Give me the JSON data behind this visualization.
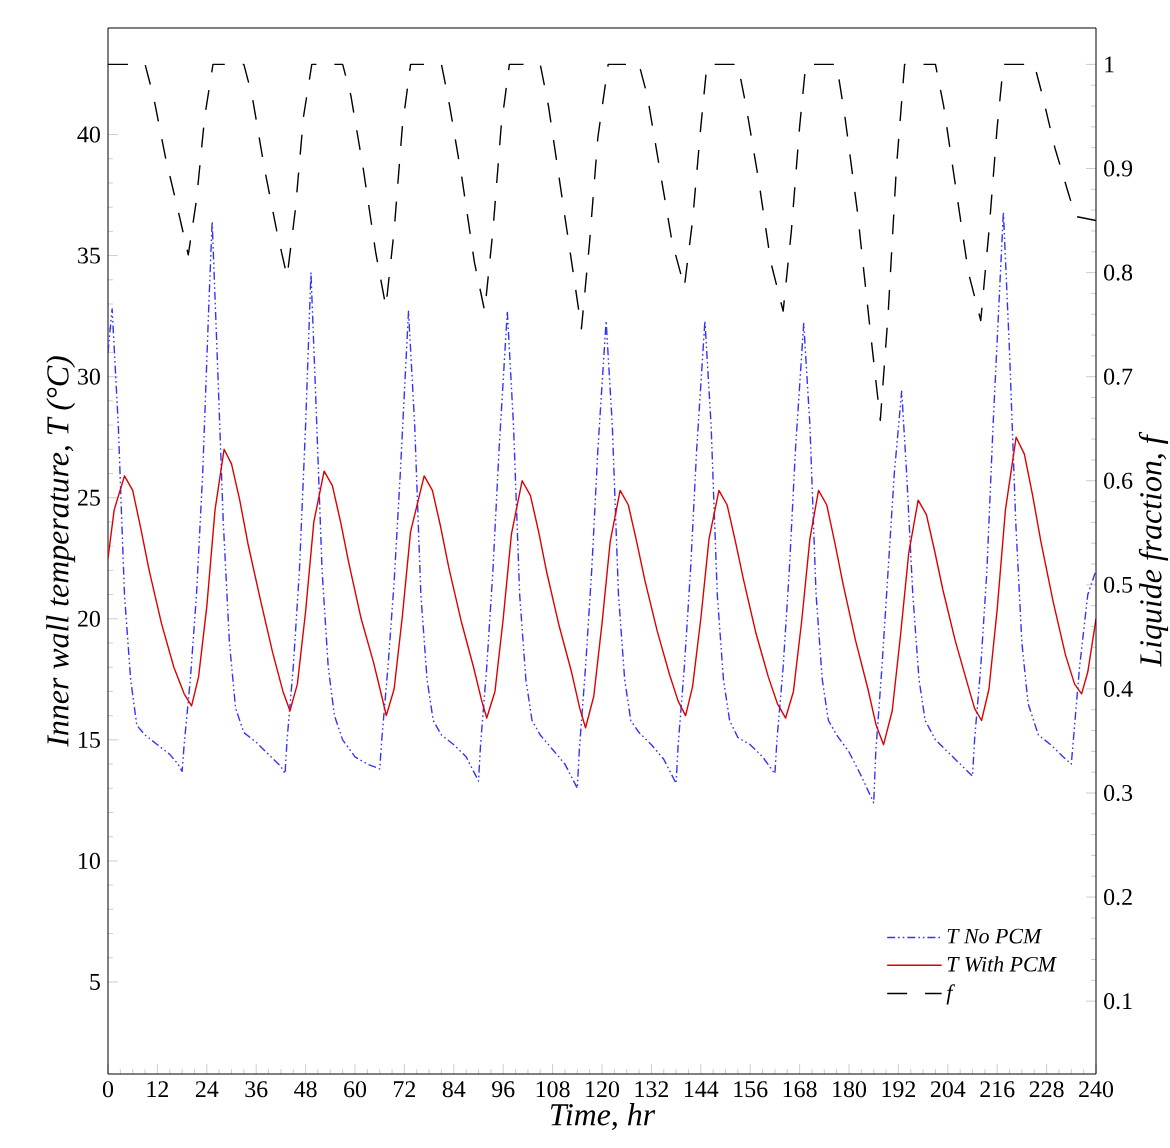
{
  "chart_data": {
    "type": "line",
    "xlabel": "Time, hr",
    "ylabel": "Inner wall temperature, T (°C)",
    "y2label": "Liquide fraction, f",
    "xlim": [
      0,
      240
    ],
    "xticks": [
      0,
      12,
      24,
      36,
      48,
      60,
      72,
      84,
      96,
      108,
      120,
      132,
      144,
      156,
      168,
      180,
      192,
      204,
      216,
      228,
      240
    ],
    "ylim": [
      1.2,
      44.4
    ],
    "yticks": [
      5,
      10,
      15,
      20,
      25,
      30,
      35,
      40
    ],
    "y2lim": [
      0.03,
      1.035
    ],
    "y2ticks": [
      0.1,
      0.2,
      0.3,
      0.4,
      0.5,
      0.6,
      0.7,
      0.8,
      0.9,
      1
    ],
    "legend": "bottom right",
    "series": [
      {
        "name": "T No PCM",
        "color": "#3333ff",
        "line_style": "dashdotdot",
        "x": [
          0,
          1,
          2.5,
          4,
          5.5,
          7,
          9,
          12,
          15,
          17,
          18,
          18.5,
          20,
          21.5,
          23,
          24.5,
          25.3,
          26.5,
          28,
          29.5,
          31,
          33,
          36,
          39,
          42,
          43,
          43.5,
          45,
          46.5,
          48,
          49.3,
          50.5,
          52,
          53.5,
          55,
          57,
          60,
          63,
          66,
          66.5,
          68,
          69.5,
          71,
          73,
          74.5,
          76,
          77.5,
          79,
          81,
          84,
          87,
          90,
          90.5,
          92,
          93.5,
          95,
          97,
          98.5,
          100,
          101.5,
          103,
          105,
          108,
          111,
          114,
          114.5,
          116,
          117.5,
          119,
          121,
          122.5,
          124,
          125.5,
          127,
          129,
          132,
          135,
          138,
          138.5,
          140,
          141.5,
          143,
          145,
          146.5,
          148,
          149.5,
          151,
          153,
          156,
          159,
          162,
          162.5,
          164,
          165.5,
          167,
          169,
          170.5,
          172,
          173.5,
          175,
          177,
          180,
          183,
          186,
          186.5,
          188,
          189.5,
          191,
          192.8,
          194,
          195.5,
          197,
          198.5,
          201,
          204,
          207,
          210,
          210.5,
          212,
          213.5,
          215,
          217.5,
          219,
          220.5,
          222,
          223.5,
          226,
          229,
          232,
          234,
          234.5,
          236,
          238,
          240
        ],
        "values": [
          31,
          32.8,
          28,
          21,
          17.5,
          15.6,
          15.2,
          14.8,
          14.4,
          14,
          13.7,
          14.8,
          17.5,
          21,
          26,
          33,
          36.4,
          31,
          24,
          19,
          16.3,
          15.3,
          14.9,
          14.4,
          13.9,
          13.6,
          15,
          18,
          22,
          28,
          34.3,
          29,
          22,
          18,
          16,
          15,
          14.3,
          14,
          13.8,
          15,
          18,
          21.5,
          26,
          32.7,
          28,
          21,
          17.5,
          15.8,
          15.2,
          14.8,
          14.3,
          13.3,
          14.8,
          18,
          22,
          27,
          32.7,
          28,
          21,
          17.5,
          15.8,
          15.2,
          14.6,
          14,
          13,
          14.6,
          18,
          22,
          27,
          32.3,
          28,
          21,
          17.5,
          15.8,
          15.3,
          14.8,
          14.2,
          13.2,
          14.8,
          18,
          22,
          27,
          32.3,
          28,
          21,
          17.5,
          15.8,
          15.1,
          14.8,
          14.3,
          13.6,
          15,
          18,
          22,
          27,
          32.2,
          28,
          21,
          17.5,
          15.8,
          15.2,
          14.5,
          13.5,
          12.4,
          14.5,
          18,
          22,
          26,
          29.4,
          26,
          21,
          17.5,
          15.8,
          15,
          14.5,
          14,
          13.5,
          15,
          18,
          22,
          28,
          36.8,
          31,
          24,
          19,
          16.5,
          15.2,
          14.8,
          14.3,
          14,
          15,
          18,
          21,
          22
        ]
      },
      {
        "name": "T With PCM",
        "color": "#dd0000",
        "line_style": "solid",
        "x": [
          0,
          1.5,
          4,
          6,
          8,
          10,
          13,
          16,
          18.5,
          20.3,
          22,
          24,
          26,
          28.2,
          30,
          32,
          34,
          37,
          40,
          42.5,
          44.2,
          46,
          48,
          50,
          52.5,
          54.5,
          56.5,
          58.5,
          61.5,
          64.5,
          66.5,
          67.6,
          69.5,
          71.5,
          73.5,
          76.8,
          78.8,
          80.8,
          82.8,
          85.8,
          88.8,
          90.8,
          92,
          94,
          96,
          98,
          100.6,
          102.6,
          104.6,
          106.6,
          109.6,
          112.6,
          114.6,
          116,
          118,
          120,
          122,
          124.4,
          126.4,
          128.4,
          130.4,
          133.4,
          136.4,
          138.5,
          140.3,
          142,
          144,
          146,
          148.4,
          150.4,
          152.4,
          154.4,
          157.4,
          160.4,
          162.6,
          164.6,
          166.5,
          168.5,
          170.5,
          172.6,
          174.6,
          176.6,
          178.6,
          181.6,
          184.6,
          186.6,
          188.4,
          190.5,
          192.5,
          194.5,
          196.8,
          198.8,
          200.8,
          202.8,
          205.8,
          208.8,
          210.5,
          212.2,
          214,
          216,
          218,
          220.6,
          222.6,
          224.6,
          226.6,
          229.6,
          232.6,
          234.8,
          236.5,
          238,
          240
        ],
        "values": [
          22.5,
          24.5,
          25.9,
          25.3,
          23.7,
          22,
          19.8,
          18,
          16.9,
          16.4,
          17.6,
          20.5,
          24.5,
          27,
          26.4,
          24.9,
          23.1,
          20.8,
          18.6,
          17,
          16.2,
          17.3,
          20.3,
          24,
          26.1,
          25.5,
          24,
          22.3,
          20,
          18.2,
          16.8,
          16,
          17.1,
          20.1,
          23.6,
          25.9,
          25.3,
          23.8,
          22.1,
          19.9,
          18,
          16.6,
          15.9,
          17,
          20,
          23.5,
          25.7,
          25.1,
          23.6,
          21.9,
          19.7,
          17.8,
          16.3,
          15.5,
          16.8,
          19.8,
          23.2,
          25.3,
          24.7,
          23.2,
          21.6,
          19.5,
          17.7,
          16.6,
          16,
          17.2,
          20,
          23.3,
          25.3,
          24.7,
          23.2,
          21.6,
          19.4,
          17.6,
          16.5,
          15.9,
          17,
          19.9,
          23.3,
          25.3,
          24.7,
          23.1,
          21.4,
          19.1,
          17.1,
          15.6,
          14.8,
          16.2,
          19.3,
          22.7,
          24.9,
          24.3,
          22.8,
          21.2,
          19.1,
          17.3,
          16.3,
          15.8,
          17.1,
          20.4,
          24.5,
          27.5,
          26.8,
          25.1,
          23.2,
          20.7,
          18.5,
          17.3,
          16.9,
          17.8,
          20
        ]
      },
      {
        "name": "f",
        "color": "#000000",
        "line_style": "dashed",
        "axis": "y2",
        "x": [
          0,
          9,
          11,
          14,
          17,
          19.5,
          21.5,
          23.5,
          25.5,
          33,
          35,
          38,
          41,
          43.5,
          45.5,
          47.5,
          49.5,
          57,
          59,
          62,
          65,
          67.5,
          69.5,
          71.5,
          73.5,
          81,
          83,
          86,
          89,
          91.5,
          93.5,
          95.5,
          97.5,
          105,
          107,
          110,
          113,
          115,
          117,
          119,
          121.5,
          129,
          131,
          134,
          137,
          140,
          142,
          144,
          145.5,
          153,
          155,
          158,
          161,
          164,
          166,
          168,
          169.5,
          177,
          179,
          182,
          185,
          187.6,
          189.5,
          191.5,
          193.5,
          201,
          203,
          206,
          209,
          212,
          214,
          216,
          217.5,
          225,
          227,
          230,
          233,
          235,
          240
        ],
        "values": [
          1,
          1,
          0.97,
          0.91,
          0.86,
          0.817,
          0.87,
          0.95,
          1,
          1,
          0.97,
          0.9,
          0.84,
          0.796,
          0.86,
          0.95,
          1,
          1,
          0.97,
          0.9,
          0.82,
          0.767,
          0.84,
          0.94,
          1,
          1,
          0.96,
          0.89,
          0.81,
          0.763,
          0.84,
          0.94,
          1,
          1,
          0.96,
          0.88,
          0.8,
          0.746,
          0.83,
          0.93,
          1,
          1,
          0.97,
          0.9,
          0.83,
          0.786,
          0.85,
          0.94,
          1,
          1,
          0.96,
          0.89,
          0.81,
          0.763,
          0.84,
          0.94,
          1,
          1,
          0.95,
          0.86,
          0.75,
          0.658,
          0.76,
          0.9,
          1,
          1,
          0.96,
          0.88,
          0.8,
          0.754,
          0.84,
          0.94,
          1,
          1,
          0.97,
          0.92,
          0.88,
          0.854,
          0.85
        ]
      }
    ]
  }
}
